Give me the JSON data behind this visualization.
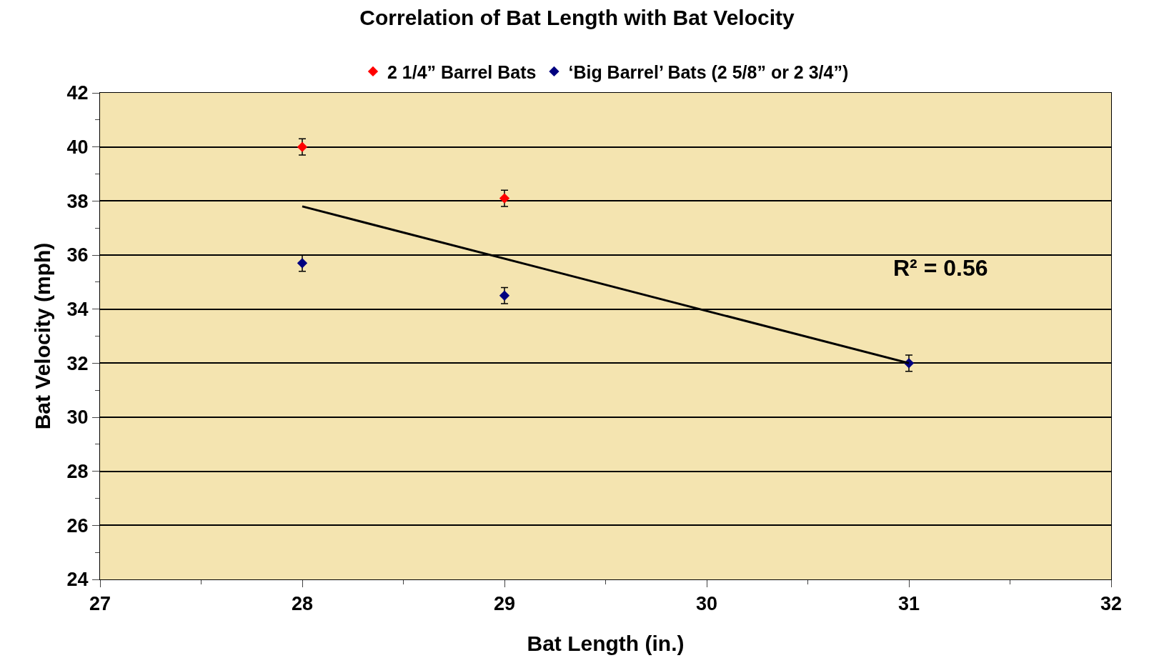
{
  "chart_data": {
    "type": "scatter",
    "title": "Correlation of Bat Length with Bat Velocity",
    "xlabel": "Bat Length (in.)",
    "ylabel": "Bat Velocity (mph)",
    "series": [
      {
        "name": "2 1/4” Barrel Bats",
        "color": "#ff0000",
        "x": [
          28,
          29
        ],
        "values": [
          40,
          38.1
        ],
        "errors": [
          0.3,
          0.3
        ]
      },
      {
        "name": "‘Big Barrel’ Bats (2 5/8” or 2 3/4”)",
        "color": "#000080",
        "x": [
          28,
          29,
          31
        ],
        "values": [
          35.7,
          34.5,
          32
        ],
        "errors": [
          0.3,
          0.3,
          0.3
        ]
      },
      {
        "type": "line",
        "marker": "none",
        "color": "#000000",
        "x": [
          28,
          31
        ],
        "values": [
          37.8,
          32
        ]
      }
    ],
    "annotations": [
      "R² = 0.56"
    ],
    "xlim": [
      27,
      32
    ],
    "xticks": [
      27,
      28,
      29,
      30,
      31,
      32
    ],
    "ylim": [
      24,
      42
    ],
    "yticks": [
      24,
      26,
      28,
      30,
      32,
      34,
      36,
      38,
      40,
      42
    ],
    "grid": "y",
    "legend": "top",
    "marker": "diamond"
  }
}
